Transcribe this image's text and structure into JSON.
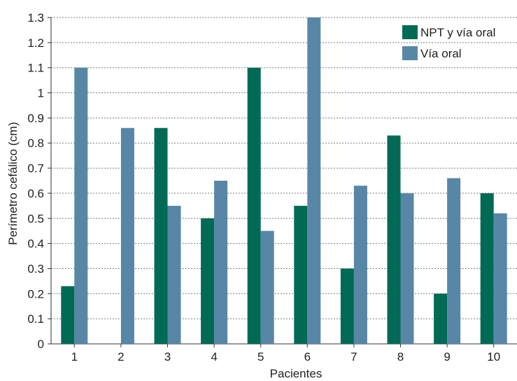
{
  "chart_data": {
    "type": "bar",
    "xlabel": "Pacientes",
    "ylabel": "Perímetro cefálico (cm)",
    "categories": [
      "1",
      "2",
      "3",
      "4",
      "5",
      "6",
      "7",
      "8",
      "9",
      "10"
    ],
    "ylim": [
      0,
      1.3
    ],
    "yticks": [
      "0",
      "0.1",
      "0.2",
      "0.3",
      "0.4",
      "0.5",
      "0.6",
      "0.7",
      "0.8",
      "0.9",
      "1",
      "1.1",
      "1.2",
      "1.3"
    ],
    "grid": true,
    "grid_style": "dotted",
    "legend_position": "top-right",
    "series": [
      {
        "name": "NPT y vía oral",
        "color": "#006a55",
        "values": [
          0.23,
          0,
          0.86,
          0.5,
          1.1,
          0.55,
          0.3,
          0.83,
          0.2,
          0.6
        ]
      },
      {
        "name": "Vía oral",
        "color": "#5886a7",
        "values": [
          1.1,
          0.86,
          0.55,
          0.65,
          0.45,
          1.3,
          0.63,
          0.6,
          0.66,
          0.52
        ]
      }
    ]
  }
}
